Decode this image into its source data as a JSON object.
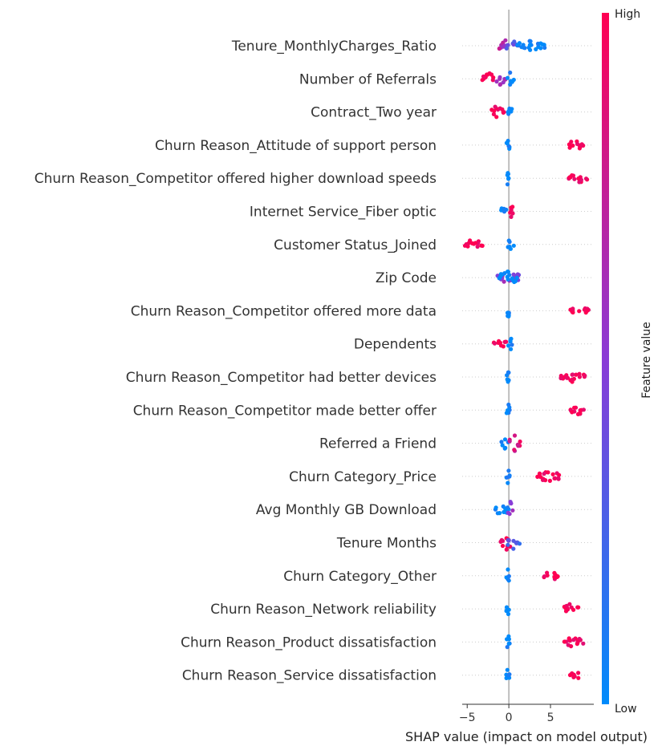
{
  "chart_data": {
    "type": "scatter",
    "subtype": "shap-beeswarm",
    "title": "",
    "xlabel": "SHAP value (impact on model output)",
    "xticks": [
      -5,
      0,
      5
    ],
    "xlim": [
      -5.6,
      10.2
    ],
    "colorbar": {
      "label": "Feature value",
      "high_label": "High",
      "low_label": "Low",
      "low_color": "#008bfb",
      "mid_color": "#8a3bd6",
      "high_color": "#ff0052"
    },
    "features": [
      {
        "name": "Tenure_MonthlyCharges_Ratio",
        "clusters": [
          {
            "min": -1.2,
            "max": 0.0,
            "value": 0.65,
            "spread": 1.0
          },
          {
            "min": -0.4,
            "max": 1.2,
            "value": 0.35,
            "spread": 0.8
          },
          {
            "min": 1.0,
            "max": 4.4,
            "value": 0.0,
            "spread": 0.6
          }
        ]
      },
      {
        "name": "Number of Referrals",
        "clusters": [
          {
            "min": -3.2,
            "max": -1.4,
            "value": 1.0,
            "spread": 0.6
          },
          {
            "min": -1.6,
            "max": -0.4,
            "value": 0.55,
            "spread": 0.7
          },
          {
            "min": -0.2,
            "max": 0.6,
            "value": 0.0,
            "spread": 1.0
          }
        ]
      },
      {
        "name": "Contract_Two year",
        "clusters": [
          {
            "min": -2.2,
            "max": -0.5,
            "value": 1.0,
            "spread": 0.8
          },
          {
            "min": -0.1,
            "max": 0.4,
            "value": 0.0,
            "spread": 1.0
          }
        ]
      },
      {
        "name": "Churn Reason_Attitude of support person",
        "clusters": [
          {
            "min": -0.3,
            "max": 0.1,
            "value": 0.0,
            "spread": 1.0
          },
          {
            "min": 7.0,
            "max": 9.0,
            "value": 1.0,
            "spread": 0.5
          }
        ]
      },
      {
        "name": "Churn Reason_Competitor offered higher download speeds",
        "clusters": [
          {
            "min": -0.3,
            "max": 0.1,
            "value": 0.0,
            "spread": 1.0
          },
          {
            "min": 7.2,
            "max": 9.4,
            "value": 1.0,
            "spread": 0.4
          }
        ]
      },
      {
        "name": "Internet Service_Fiber optic",
        "clusters": [
          {
            "min": -1.0,
            "max": 0.0,
            "value": 0.0,
            "spread": 0.9
          },
          {
            "min": 0.0,
            "max": 0.6,
            "value": 1.0,
            "spread": 1.0
          }
        ]
      },
      {
        "name": "Customer Status_Joined",
        "clusters": [
          {
            "min": -5.3,
            "max": -3.1,
            "value": 1.0,
            "spread": 0.5
          },
          {
            "min": -0.1,
            "max": 0.7,
            "value": 0.0,
            "spread": 0.9
          }
        ]
      },
      {
        "name": "Zip Code",
        "clusters": [
          {
            "min": -1.4,
            "max": 1.2,
            "value": 0.5,
            "spread": 1.0
          },
          {
            "min": -1.4,
            "max": 1.2,
            "value": 0.0,
            "spread": 0.8
          }
        ]
      },
      {
        "name": "Churn Reason_Competitor offered more data",
        "clusters": [
          {
            "min": -0.3,
            "max": 0.1,
            "value": 0.0,
            "spread": 1.0
          },
          {
            "min": 7.4,
            "max": 9.6,
            "value": 1.0,
            "spread": 0.4
          }
        ]
      },
      {
        "name": "Dependents",
        "clusters": [
          {
            "min": -1.8,
            "max": -0.3,
            "value": 1.0,
            "spread": 0.7
          },
          {
            "min": -0.1,
            "max": 0.4,
            "value": 0.0,
            "spread": 1.0
          }
        ]
      },
      {
        "name": "Churn Reason_Competitor had better devices",
        "clusters": [
          {
            "min": -0.3,
            "max": 0.1,
            "value": 0.0,
            "spread": 1.0
          },
          {
            "min": 6.2,
            "max": 9.2,
            "value": 1.0,
            "spread": 0.5
          }
        ]
      },
      {
        "name": "Churn Reason_Competitor made better offer",
        "clusters": [
          {
            "min": -0.3,
            "max": 0.1,
            "value": 0.0,
            "spread": 1.0
          },
          {
            "min": 7.4,
            "max": 9.2,
            "value": 1.0,
            "spread": 0.4
          }
        ]
      },
      {
        "name": "Referred a Friend",
        "clusters": [
          {
            "min": -0.9,
            "max": 0.1,
            "value": 0.0,
            "spread": 0.9
          },
          {
            "min": 0.0,
            "max": 1.4,
            "value": 0.85,
            "spread": 1.0
          }
        ]
      },
      {
        "name": "Churn Category_Price",
        "clusters": [
          {
            "min": -0.3,
            "max": 0.1,
            "value": 0.0,
            "spread": 1.0
          },
          {
            "min": 3.4,
            "max": 6.2,
            "value": 1.0,
            "spread": 0.6
          }
        ]
      },
      {
        "name": "Avg Monthly GB Download",
        "clusters": [
          {
            "min": -1.8,
            "max": 0.0,
            "value": 0.0,
            "spread": 0.8
          },
          {
            "min": -0.2,
            "max": 0.6,
            "value": 0.55,
            "spread": 1.0
          }
        ]
      },
      {
        "name": "Tenure Months",
        "clusters": [
          {
            "min": -1.0,
            "max": 0.4,
            "value": 1.0,
            "spread": 0.9
          },
          {
            "min": -0.2,
            "max": 1.4,
            "value": 0.3,
            "spread": 0.8
          }
        ]
      },
      {
        "name": "Churn Category_Other",
        "clusters": [
          {
            "min": -0.3,
            "max": 0.1,
            "value": 0.0,
            "spread": 1.0
          },
          {
            "min": 4.2,
            "max": 5.9,
            "value": 1.0,
            "spread": 0.6
          }
        ]
      },
      {
        "name": "Churn Reason_Network reliability",
        "clusters": [
          {
            "min": -0.3,
            "max": 0.1,
            "value": 0.0,
            "spread": 1.0
          },
          {
            "min": 6.6,
            "max": 8.4,
            "value": 1.0,
            "spread": 0.5
          }
        ]
      },
      {
        "name": "Churn Reason_Product dissatisfaction",
        "clusters": [
          {
            "min": -0.3,
            "max": 0.1,
            "value": 0.0,
            "spread": 1.0
          },
          {
            "min": 6.6,
            "max": 9.0,
            "value": 1.0,
            "spread": 0.5
          }
        ]
      },
      {
        "name": "Churn Reason_Service dissatisfaction",
        "clusters": [
          {
            "min": -0.3,
            "max": 0.1,
            "value": 0.0,
            "spread": 1.0
          },
          {
            "min": 7.2,
            "max": 8.6,
            "value": 1.0,
            "spread": 0.4
          }
        ]
      }
    ]
  }
}
